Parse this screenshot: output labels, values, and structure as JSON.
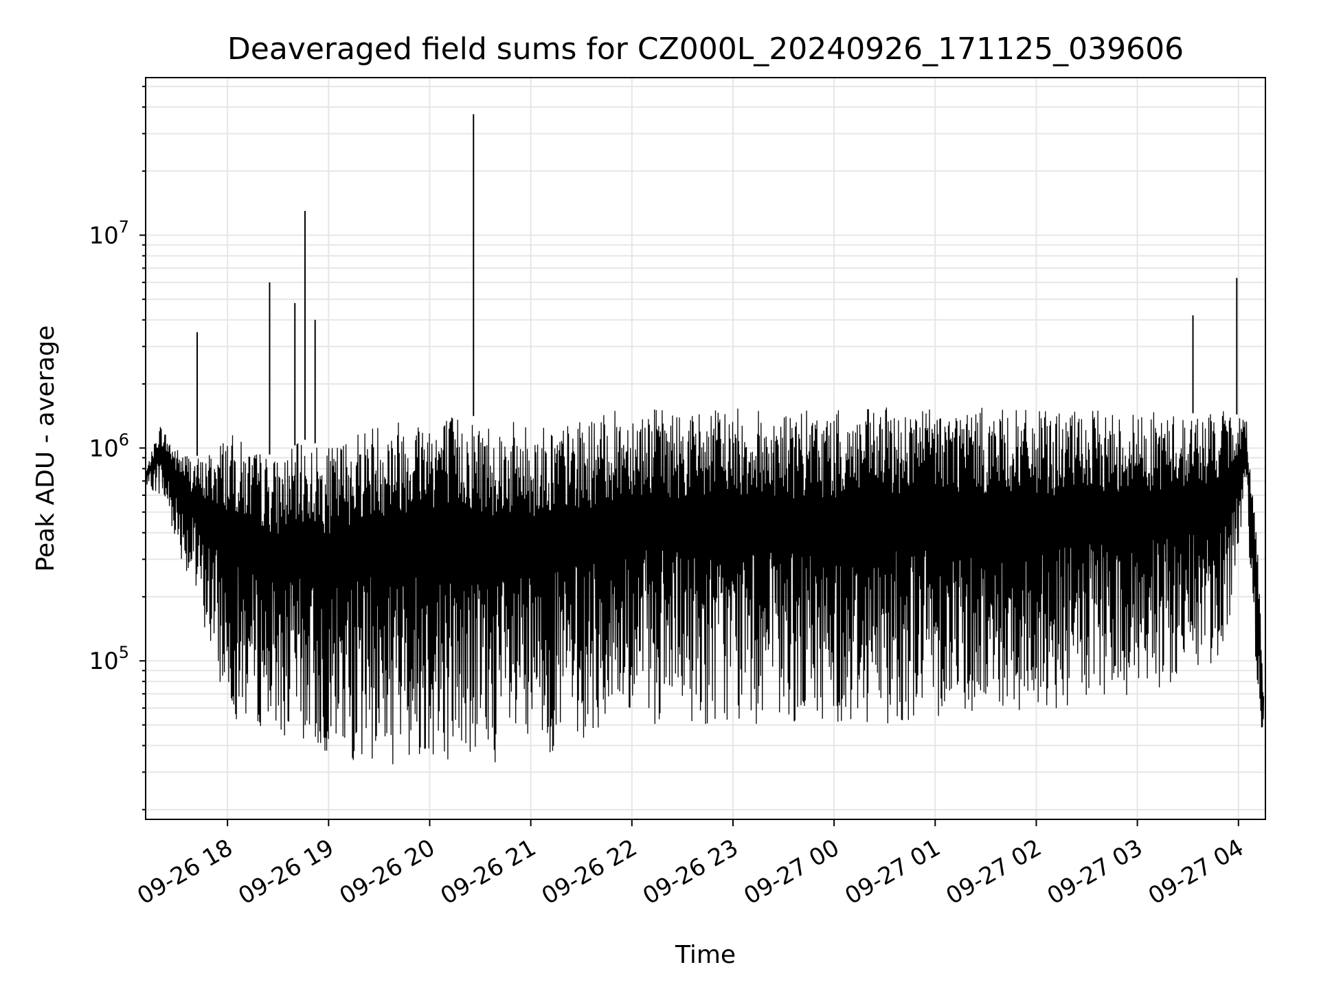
{
  "chart_data": {
    "type": "line",
    "title": "Deaveraged field sums for CZ000L_20240926_171125_039606",
    "xlabel": "Time",
    "ylabel": "Peak ADU - average",
    "yscale": "log",
    "ylim": [
      18000,
      55000000
    ],
    "xlim": [
      "09-26 17:11:25",
      "09-27 04:16:00"
    ],
    "grid": true,
    "line_color": "#000000",
    "x_ticks": [
      "09-26 18",
      "09-26 19",
      "09-26 20",
      "09-26 21",
      "09-26 22",
      "09-26 23",
      "09-27 00",
      "09-27 01",
      "09-27 02",
      "09-27 03",
      "09-27 04"
    ],
    "y_ticks": [
      {
        "base": "10",
        "exp": "5",
        "value": 100000
      },
      {
        "base": "10",
        "exp": "6",
        "value": 1000000
      },
      {
        "base": "10",
        "exp": "7",
        "value": 10000000
      }
    ],
    "series": [
      {
        "upper_envelope": {
          "x": [
            "09-26 17:12",
            "09-26 17:20",
            "09-26 17:30",
            "09-26 17:45",
            "09-26 18:00",
            "09-26 18:15",
            "09-26 18:30",
            "09-26 18:45",
            "09-26 19:00",
            "09-26 19:20",
            "09-26 19:40",
            "09-26 20:00",
            "09-26 20:30",
            "09-26 21:00",
            "09-26 21:20",
            "09-26 21:40",
            "09-26 22:00",
            "09-26 22:30",
            "09-26 23:00",
            "09-26 23:30",
            "09-27 00:00",
            "09-27 00:30",
            "09-27 01:00",
            "09-27 01:30",
            "09-27 02:00",
            "09-27 02:30",
            "09-27 03:00",
            "09-27 03:30",
            "09-27 03:50",
            "09-27 04:05",
            "09-27 04:12",
            "09-27 04:15"
          ],
          "y": [
            800000,
            1300000,
            1000000,
            900000,
            1200000,
            1000000,
            900000,
            1100000,
            1000000,
            1300000,
            1400000,
            1500000,
            1400000,
            1300000,
            1300000,
            1400000,
            1600000,
            1500000,
            1550000,
            1500000,
            1500000,
            1550000,
            1600000,
            1550000,
            1500000,
            1500000,
            1500000,
            1450000,
            1500000,
            1400000,
            300000,
            70000
          ]
        },
        "lower_envelope": {
          "x": [
            "09-26 17:12",
            "09-26 17:20",
            "09-26 17:30",
            "09-26 17:45",
            "09-26 18:00",
            "09-26 18:15",
            "09-26 18:30",
            "09-26 18:45",
            "09-26 19:00",
            "09-26 19:20",
            "09-26 19:40",
            "09-26 20:00",
            "09-26 20:30",
            "09-26 21:00",
            "09-26 21:20",
            "09-26 21:40",
            "09-26 22:00",
            "09-26 22:30",
            "09-26 23:00",
            "09-26 23:30",
            "09-27 00:00",
            "09-27 00:30",
            "09-27 01:00",
            "09-27 01:30",
            "09-27 02:00",
            "09-27 02:30",
            "09-27 03:00",
            "09-27 03:30",
            "09-27 03:50",
            "09-27 04:05",
            "09-27 04:12",
            "09-27 04:15"
          ],
          "y": [
            650000,
            600000,
            350000,
            150000,
            55000,
            50000,
            45000,
            40000,
            35000,
            33000,
            32000,
            35000,
            33000,
            32000,
            40000,
            45000,
            50000,
            50000,
            50000,
            50000,
            50000,
            50000,
            55000,
            55000,
            55000,
            60000,
            65000,
            80000,
            100000,
            450000,
            60000,
            35000
          ]
        },
        "spikes": [
          {
            "x": "09-26 17:42",
            "y": 3500000
          },
          {
            "x": "09-26 18:25",
            "y": 6000000
          },
          {
            "x": "09-26 18:40",
            "y": 4800000
          },
          {
            "x": "09-26 18:46",
            "y": 13000000
          },
          {
            "x": "09-26 18:52",
            "y": 4000000
          },
          {
            "x": "09-26 20:26",
            "y": 37000000
          },
          {
            "x": "09-27 03:33",
            "y": 4200000
          },
          {
            "x": "09-27 03:59",
            "y": 6300000
          }
        ]
      }
    ]
  }
}
